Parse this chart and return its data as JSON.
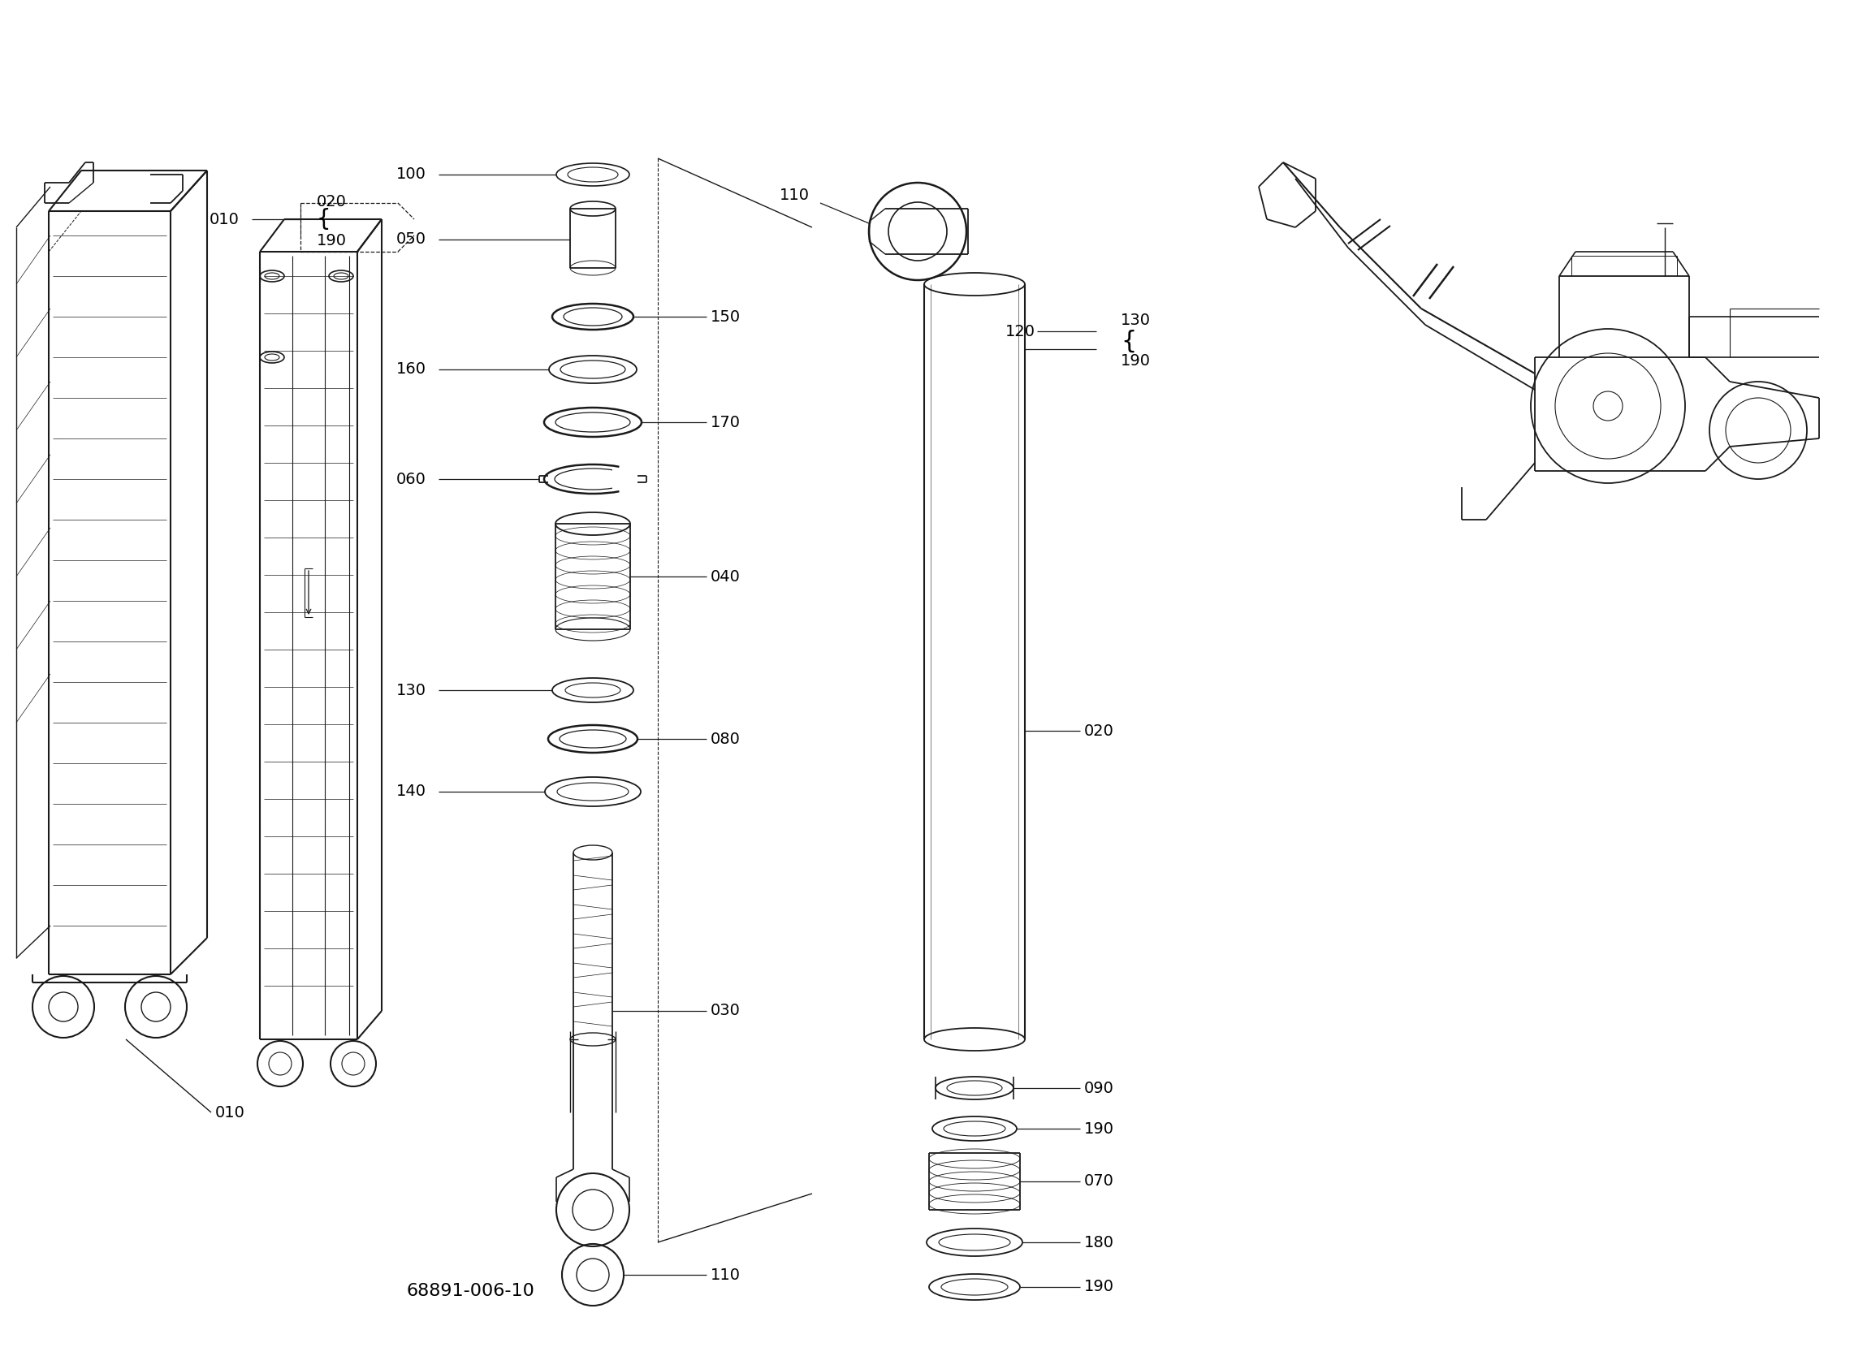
{
  "background_color": "#ffffff",
  "line_color": "#1a1a1a",
  "fig_width": 22.99,
  "fig_height": 16.7,
  "diagram_code": "68891-006-10",
  "lw": 1.0,
  "font_size": 14,
  "small_font": 11
}
